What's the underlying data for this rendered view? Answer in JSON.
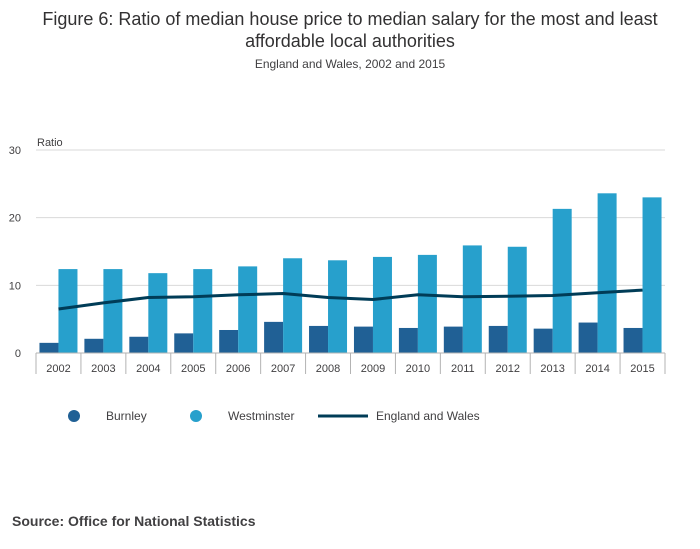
{
  "title": "Figure 6: Ratio of median house price to median salary for the most and least affordable local authorities",
  "subtitle": "England and Wales, 2002 and 2015",
  "source": "Source: Office for National Statistics",
  "colors": {
    "burnley": "#206095",
    "westminster": "#27a0cc",
    "england_wales": "#003c57",
    "grid": "#d9d9d9",
    "axis": "#b3b3b3",
    "text": "#414042"
  },
  "chart_data": {
    "type": "bar",
    "ylabel": "Ratio",
    "ylim": [
      0,
      30
    ],
    "yticks": [
      0,
      10,
      20,
      30
    ],
    "categories": [
      "2002",
      "2003",
      "2004",
      "2005",
      "2006",
      "2007",
      "2008",
      "2009",
      "2010",
      "2011",
      "2012",
      "2013",
      "2014",
      "2015"
    ],
    "series": [
      {
        "name": "Burnley",
        "type": "bar",
        "color_key": "burnley",
        "values": [
          1.5,
          2.1,
          2.4,
          2.9,
          3.4,
          4.6,
          4.0,
          3.9,
          3.7,
          3.9,
          4.0,
          3.6,
          4.5,
          3.7
        ]
      },
      {
        "name": "Westminster",
        "type": "bar",
        "color_key": "westminster",
        "values": [
          12.4,
          12.4,
          11.8,
          12.4,
          12.8,
          14.0,
          13.7,
          14.2,
          14.5,
          15.9,
          15.7,
          21.3,
          23.6,
          23.0
        ]
      },
      {
        "name": "England and Wales",
        "type": "line",
        "color_key": "england_wales",
        "values": [
          6.5,
          7.4,
          8.2,
          8.3,
          8.6,
          8.8,
          8.2,
          7.9,
          8.6,
          8.3,
          8.4,
          8.5,
          8.9,
          9.3
        ]
      }
    ],
    "legend": [
      "Burnley",
      "Westminster",
      "England and Wales"
    ],
    "legend_position": "bottom-left"
  }
}
